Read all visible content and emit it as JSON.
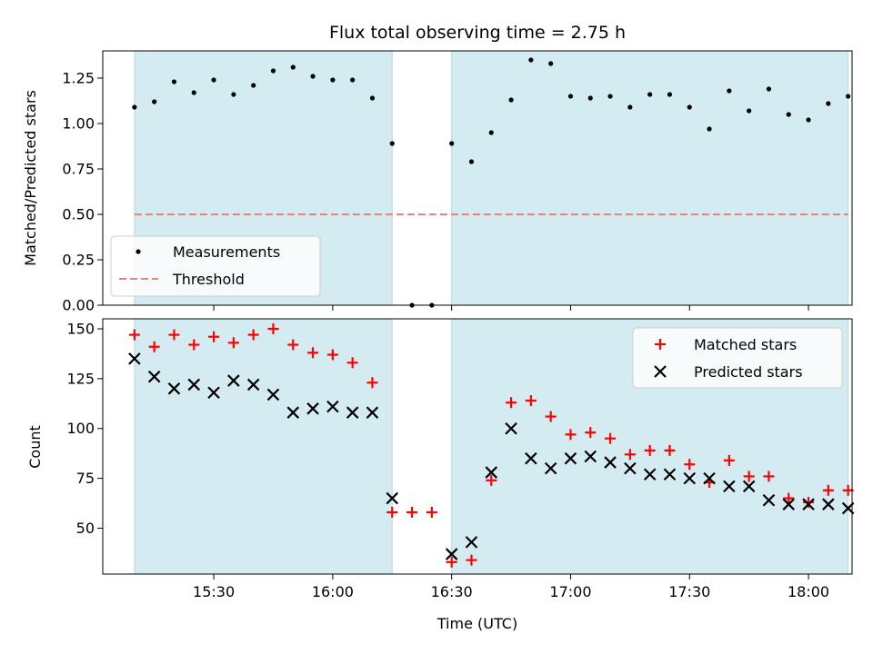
{
  "chart_data": [
    {
      "type": "scatter",
      "title": "Flux total observing time = 2.75 h",
      "xlabel": "",
      "ylabel": "Matched/Predicted stars",
      "xlim": [
        "15:02",
        "18:11"
      ],
      "ylim": [
        0,
        1.4
      ],
      "yticks": [
        "0.00",
        "0.25",
        "0.50",
        "0.75",
        "1.00",
        "1.25"
      ],
      "ytick_values": [
        0,
        0.25,
        0.5,
        0.75,
        1.0,
        1.25
      ],
      "grid": false,
      "legend_position": "lower-left",
      "observing_windows": [
        [
          "15:10",
          "16:15"
        ],
        [
          "16:30",
          "18:10"
        ]
      ],
      "window_color": "#d4ebf1",
      "threshold": {
        "name": "Threshold",
        "value": 0.5,
        "x_range": [
          "15:10",
          "18:10"
        ],
        "color": "#f08080",
        "style": "dashed"
      },
      "series": [
        {
          "name": "Measurements",
          "marker": "dot",
          "color": "#000000",
          "x": [
            "15:10",
            "15:15",
            "15:20",
            "15:25",
            "15:30",
            "15:35",
            "15:40",
            "15:45",
            "15:50",
            "15:55",
            "16:00",
            "16:05",
            "16:10",
            "16:15",
            "16:20",
            "16:25",
            "16:30",
            "16:35",
            "16:40",
            "16:45",
            "16:50",
            "16:55",
            "17:00",
            "17:05",
            "17:10",
            "17:15",
            "17:20",
            "17:25",
            "17:30",
            "17:35",
            "17:40",
            "17:45",
            "17:50",
            "17:55",
            "18:00",
            "18:05",
            "18:10"
          ],
          "y": [
            1.09,
            1.12,
            1.23,
            1.17,
            1.24,
            1.16,
            1.21,
            1.29,
            1.31,
            1.26,
            1.24,
            1.24,
            1.14,
            0.89,
            0.0,
            0.0,
            0.89,
            0.79,
            0.95,
            1.13,
            1.35,
            1.33,
            1.15,
            1.14,
            1.15,
            1.09,
            1.16,
            1.16,
            1.09,
            0.97,
            1.18,
            1.07,
            1.19,
            1.05,
            1.02,
            1.11,
            1.15
          ]
        }
      ]
    },
    {
      "type": "scatter",
      "title": "",
      "xlabel": "Time (UTC)",
      "ylabel": "Count",
      "xlim": [
        "15:02",
        "18:11"
      ],
      "ylim": [
        27,
        155
      ],
      "xticks": [
        "15:30",
        "16:00",
        "16:30",
        "17:00",
        "17:30",
        "18:00"
      ],
      "yticks": [
        "50",
        "75",
        "100",
        "125",
        "150"
      ],
      "ytick_values": [
        50,
        75,
        100,
        125,
        150
      ],
      "grid": false,
      "legend_position": "top-right",
      "observing_windows": [
        [
          "15:10",
          "16:15"
        ],
        [
          "16:30",
          "18:10"
        ]
      ],
      "window_color": "#d4ebf1",
      "series": [
        {
          "name": "Matched stars",
          "marker": "plus",
          "color": "#ff0000",
          "x": [
            "15:10",
            "15:15",
            "15:20",
            "15:25",
            "15:30",
            "15:35",
            "15:40",
            "15:45",
            "15:50",
            "15:55",
            "16:00",
            "16:05",
            "16:10",
            "16:15",
            "16:20",
            "16:25",
            "16:30",
            "16:35",
            "16:40",
            "16:45",
            "16:50",
            "16:55",
            "17:00",
            "17:05",
            "17:10",
            "17:15",
            "17:20",
            "17:25",
            "17:30",
            "17:35",
            "17:40",
            "17:45",
            "17:50",
            "17:55",
            "18:00",
            "18:05",
            "18:10"
          ],
          "y": [
            147,
            141,
            147,
            142,
            146,
            143,
            147,
            150,
            142,
            138,
            137,
            133,
            123,
            58,
            58,
            58,
            33,
            34,
            74,
            113,
            114,
            106,
            97,
            98,
            95,
            87,
            89,
            89,
            82,
            73,
            84,
            76,
            76,
            65,
            63,
            69,
            69
          ]
        },
        {
          "name": "Predicted stars",
          "marker": "x",
          "color": "#000000",
          "x": [
            "15:10",
            "15:15",
            "15:20",
            "15:25",
            "15:30",
            "15:35",
            "15:40",
            "15:45",
            "15:50",
            "15:55",
            "16:00",
            "16:05",
            "16:10",
            "16:15",
            "16:30",
            "16:35",
            "16:40",
            "16:45",
            "16:50",
            "16:55",
            "17:00",
            "17:05",
            "17:10",
            "17:15",
            "17:20",
            "17:25",
            "17:30",
            "17:35",
            "17:40",
            "17:45",
            "17:50",
            "17:55",
            "18:00",
            "18:05",
            "18:10"
          ],
          "y": [
            135,
            126,
            120,
            122,
            118,
            124,
            122,
            117,
            108,
            110,
            111,
            108,
            108,
            65,
            37,
            43,
            78,
            100,
            85,
            80,
            85,
            86,
            83,
            80,
            77,
            77,
            75,
            75,
            71,
            71,
            64,
            62,
            62,
            62,
            60
          ]
        }
      ]
    }
  ]
}
